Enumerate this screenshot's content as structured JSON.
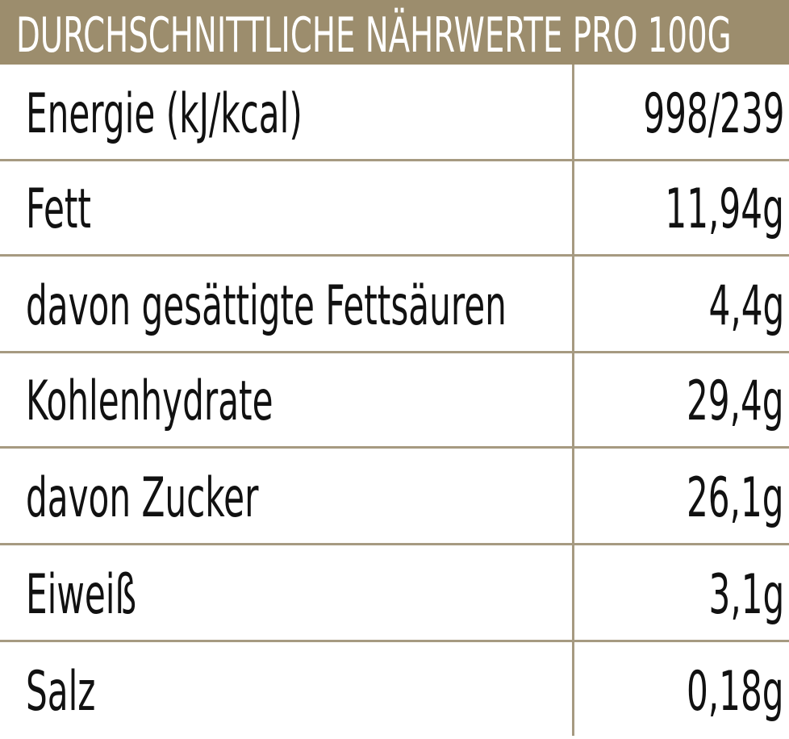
{
  "header": {
    "title": "DURCHSCHNITTLICHE NÄHRWERTE PRO 100G"
  },
  "rows": [
    {
      "label": "Energie (kJ/kcal)",
      "value": "998/239"
    },
    {
      "label": "Fett",
      "value": "11,94g"
    },
    {
      "label": "davon gesättigte Fettsäuren",
      "value": "4,4g"
    },
    {
      "label": "Kohlenhydrate",
      "value": "29,4g"
    },
    {
      "label": "davon Zucker",
      "value": "26,1g"
    },
    {
      "label": "Eiweiß",
      "value": "3,1g"
    },
    {
      "label": "Salz",
      "value": "0,18g"
    }
  ],
  "colors": {
    "header_background": "#9c8d6d",
    "header_text": "#ffffff",
    "rule": "#a69a81",
    "text": "#111111"
  }
}
